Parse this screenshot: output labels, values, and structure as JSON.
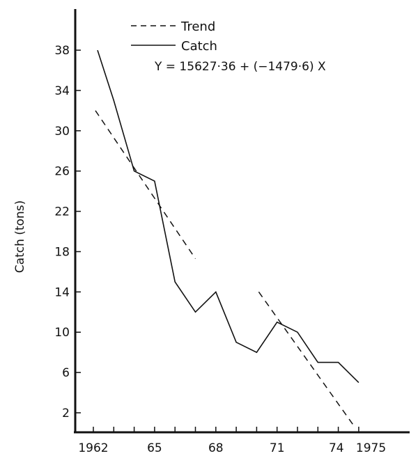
{
  "chart_data": {
    "type": "line",
    "title": "",
    "xlabel": "",
    "ylabel": "Catch (tons)",
    "x": [
      1962,
      1963,
      1964,
      1965,
      1966,
      1967,
      1968,
      1969,
      1970,
      1971,
      1972,
      1973,
      1974,
      1975
    ],
    "xlim": [
      1962,
      1977.5
    ],
    "ylim": [
      0,
      40
    ],
    "grid": false,
    "legend_position": "top-center",
    "x_tick_labels": [
      {
        "value": 1962,
        "label": "1962"
      },
      {
        "value": 1965,
        "label": "65"
      },
      {
        "value": 1968,
        "label": "68"
      },
      {
        "value": 1971,
        "label": "71"
      },
      {
        "value": 1974,
        "label": "74"
      },
      {
        "value": 1975,
        "label": "1975"
      }
    ],
    "y_ticks": [
      2,
      6,
      10,
      14,
      18,
      22,
      26,
      30,
      34,
      38
    ],
    "series": [
      {
        "name": "Catch",
        "style": "solid",
        "values": [
          38,
          33,
          26,
          25,
          15,
          12,
          14,
          9,
          8,
          11,
          10,
          7,
          7,
          5
        ]
      },
      {
        "name": "Trend",
        "style": "dashed",
        "segments": [
          {
            "x": [
              1962,
              1967
            ],
            "y": [
              32,
              17.3
            ]
          },
          {
            "x": [
              1970,
              1974.8
            ],
            "y": [
              14,
              0.6
            ]
          }
        ]
      }
    ],
    "annotations": [
      {
        "text": "Y = 15627·36 + (−1479·6) X",
        "position": "below legend"
      }
    ]
  },
  "legend": {
    "trend_label": "Trend",
    "catch_label": "Catch"
  },
  "equation": "Y = 15627·36 + (−1479·6) X",
  "axis": {
    "ylabel": "Catch (tons)"
  }
}
